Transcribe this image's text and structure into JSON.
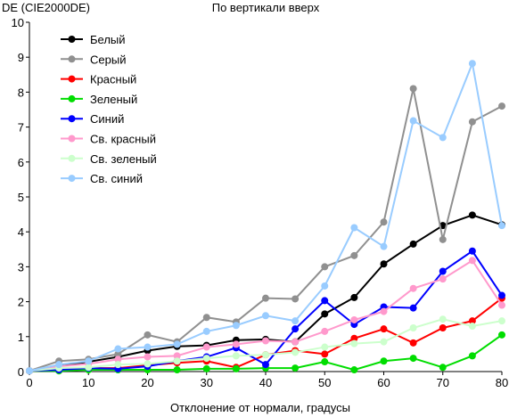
{
  "chart_data": {
    "type": "line",
    "title": "По вертикали вверх",
    "ylabel": "DE (CIE2000DE)",
    "xlabel": "Отклонение от нормали, градусы",
    "x": [
      0,
      5,
      10,
      15,
      20,
      25,
      30,
      35,
      40,
      45,
      50,
      55,
      60,
      65,
      70,
      75,
      80
    ],
    "xlim": [
      0,
      80
    ],
    "ylim": [
      0,
      10
    ],
    "xticks": [
      "0",
      "10",
      "20",
      "30",
      "40",
      "50",
      "60",
      "70",
      "80"
    ],
    "yticks": [
      "0",
      "1",
      "2",
      "3",
      "4",
      "5",
      "6",
      "7",
      "8",
      "9",
      "10"
    ],
    "grid": false,
    "legend_position": "top-left",
    "series": [
      {
        "name": "Белый",
        "color": "#000000",
        "values": [
          0.02,
          0.15,
          0.28,
          0.42,
          0.6,
          0.72,
          0.75,
          0.9,
          0.92,
          0.85,
          1.65,
          2.12,
          3.08,
          3.65,
          4.18,
          4.48,
          4.2
        ]
      },
      {
        "name": "Серый",
        "color": "#909090",
        "values": [
          0.02,
          0.3,
          0.35,
          0.5,
          1.05,
          0.85,
          1.55,
          1.42,
          2.1,
          2.08,
          3.0,
          3.32,
          4.28,
          8.1,
          3.78,
          7.15,
          7.6
        ]
      },
      {
        "name": "Красный",
        "color": "#ff0000",
        "values": [
          0.02,
          0.05,
          0.1,
          0.1,
          0.18,
          0.25,
          0.3,
          0.12,
          0.48,
          0.6,
          0.5,
          0.95,
          1.22,
          0.82,
          1.25,
          1.45,
          2.1
        ]
      },
      {
        "name": "Зеленый",
        "color": "#00dd00",
        "values": [
          0.02,
          0.02,
          0.05,
          0.05,
          0.05,
          0.05,
          0.08,
          0.08,
          0.1,
          0.1,
          0.28,
          0.05,
          0.3,
          0.38,
          0.12,
          0.45,
          1.05
        ]
      },
      {
        "name": "Синий",
        "color": "#0000ff",
        "values": [
          0.02,
          0.05,
          0.1,
          0.08,
          0.15,
          0.3,
          0.42,
          0.68,
          0.2,
          1.22,
          2.03,
          1.35,
          1.85,
          1.82,
          2.87,
          3.45,
          2.18
        ]
      },
      {
        "name": "Св. красный",
        "color": "#ff99cc",
        "values": [
          0.02,
          0.15,
          0.22,
          0.35,
          0.42,
          0.45,
          0.7,
          0.78,
          0.88,
          0.85,
          1.15,
          1.48,
          1.72,
          2.38,
          2.65,
          3.18,
          1.9
        ]
      },
      {
        "name": "Св. зеленый",
        "color": "#ccffcc",
        "values": [
          0.02,
          0.1,
          0.12,
          0.2,
          0.22,
          0.3,
          0.38,
          0.45,
          0.48,
          0.55,
          0.7,
          0.8,
          0.85,
          1.25,
          1.5,
          1.3,
          1.45
        ]
      },
      {
        "name": "Св. синий",
        "color": "#99ccff",
        "values": [
          0.02,
          0.2,
          0.3,
          0.65,
          0.7,
          0.78,
          1.15,
          1.32,
          1.6,
          1.45,
          2.45,
          4.12,
          3.58,
          7.18,
          6.7,
          8.82,
          4.18
        ]
      }
    ]
  }
}
